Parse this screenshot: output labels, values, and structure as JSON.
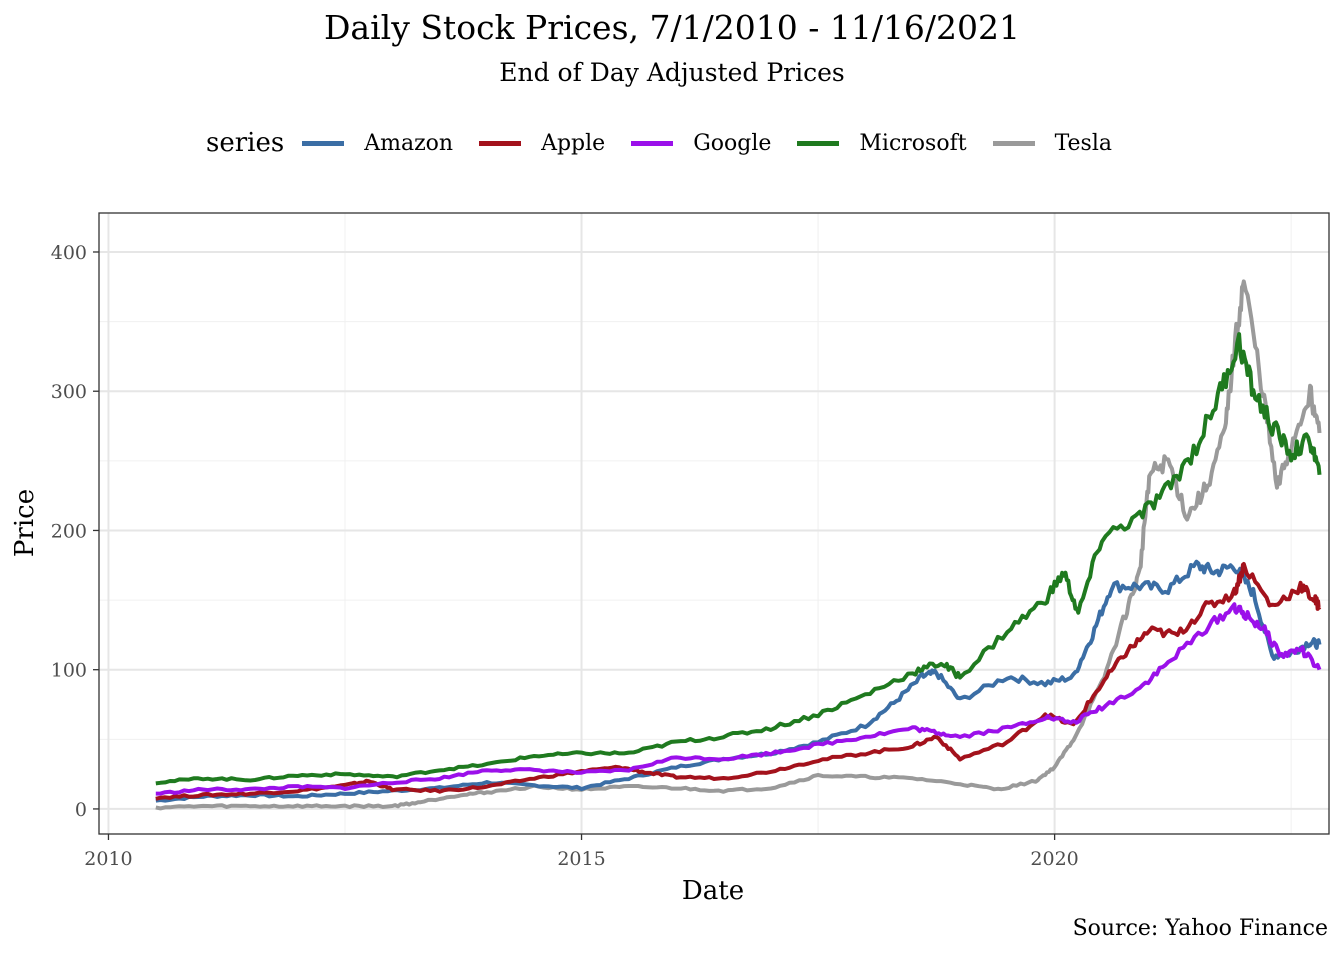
{
  "chart_data": {
    "type": "line",
    "title": "Daily Stock Prices, 7/1/2010 - 11/16/2021",
    "subtitle": "End of Day Adjusted Prices",
    "xlabel": "Date",
    "ylabel": "Price",
    "caption": "Source: Yahoo Finance",
    "legend_title": "series",
    "legend_position": "top",
    "grid": true,
    "xlim": [
      2009.9,
      2022.9
    ],
    "ylim": [
      -18,
      428
    ],
    "x_ticks": [
      2010,
      2015,
      2020
    ],
    "y_ticks": [
      0,
      100,
      200,
      300,
      400
    ],
    "series": [
      {
        "name": "Amazon",
        "color": "#3b6ea5",
        "x": [
          2010.5,
          2011.0,
          2011.5,
          2012.0,
          2012.5,
          2013.0,
          2013.5,
          2014.0,
          2014.5,
          2015.0,
          2015.5,
          2016.0,
          2016.5,
          2017.0,
          2017.5,
          2018.0,
          2018.3,
          2018.6,
          2018.75,
          2019.0,
          2019.5,
          2019.9,
          2020.2,
          2020.4,
          2020.6,
          2020.9,
          2021.2,
          2021.5,
          2021.7,
          2021.9,
          2022.1,
          2022.3,
          2022.5,
          2022.7,
          2022.8
        ],
        "values": [
          6,
          9,
          10,
          9,
          11,
          13,
          15,
          19,
          17,
          15,
          22,
          30,
          36,
          40,
          48,
          60,
          76,
          95,
          98,
          78,
          95,
          90,
          95,
          125,
          160,
          160,
          158,
          175,
          170,
          175,
          155,
          110,
          112,
          120,
          118
        ]
      },
      {
        "name": "Apple",
        "color": "#a3121c",
        "x": [
          2010.5,
          2011.0,
          2011.5,
          2012.0,
          2012.5,
          2012.75,
          2013.0,
          2013.5,
          2014.0,
          2014.5,
          2015.0,
          2015.4,
          2015.7,
          2016.0,
          2016.5,
          2017.0,
          2017.5,
          2018.0,
          2018.5,
          2018.75,
          2019.0,
          2019.5,
          2019.9,
          2020.2,
          2020.5,
          2020.75,
          2021.0,
          2021.3,
          2021.6,
          2021.9,
          2022.0,
          2022.3,
          2022.6,
          2022.75,
          2022.8
        ],
        "values": [
          8,
          10,
          11,
          13,
          17,
          20,
          14,
          13,
          16,
          22,
          27,
          30,
          26,
          23,
          22,
          27,
          35,
          40,
          45,
          52,
          36,
          48,
          68,
          60,
          90,
          112,
          128,
          125,
          145,
          155,
          175,
          145,
          160,
          150,
          145
        ]
      },
      {
        "name": "Google",
        "color": "#9b10ea",
        "x": [
          2010.5,
          2011.0,
          2011.5,
          2012.0,
          2012.5,
          2013.0,
          2013.5,
          2014.0,
          2014.5,
          2015.0,
          2015.5,
          2016.0,
          2016.5,
          2017.0,
          2017.5,
          2018.0,
          2018.5,
          2018.75,
          2019.0,
          2019.5,
          2019.9,
          2020.2,
          2020.5,
          2020.9,
          2021.2,
          2021.6,
          2021.9,
          2022.0,
          2022.2,
          2022.4,
          2022.6,
          2022.8
        ],
        "values": [
          11,
          14,
          14,
          16,
          15,
          19,
          22,
          28,
          28,
          26,
          28,
          37,
          36,
          40,
          46,
          52,
          58,
          55,
          52,
          58,
          66,
          62,
          73,
          87,
          105,
          130,
          145,
          140,
          130,
          110,
          115,
          100
        ]
      },
      {
        "name": "Microsoft",
        "color": "#1f7a1f",
        "x": [
          2010.5,
          2011.0,
          2011.5,
          2012.0,
          2012.5,
          2013.0,
          2013.5,
          2014.0,
          2014.5,
          2015.0,
          2015.5,
          2016.0,
          2016.5,
          2017.0,
          2017.5,
          2018.0,
          2018.5,
          2018.8,
          2019.0,
          2019.5,
          2019.9,
          2020.1,
          2020.25,
          2020.5,
          2020.9,
          2021.2,
          2021.5,
          2021.75,
          2021.95,
          2022.1,
          2022.3,
          2022.5,
          2022.7,
          2022.8
        ],
        "values": [
          19,
          22,
          21,
          24,
          25,
          23,
          28,
          32,
          38,
          40,
          40,
          48,
          52,
          58,
          68,
          82,
          98,
          105,
          95,
          128,
          150,
          170,
          140,
          195,
          210,
          230,
          260,
          300,
          335,
          300,
          275,
          255,
          265,
          240
        ]
      },
      {
        "name": "Tesla",
        "color": "#9a9a9a",
        "x": [
          2010.5,
          2011.0,
          2011.5,
          2012.0,
          2012.5,
          2013.0,
          2013.3,
          2013.7,
          2014.0,
          2014.5,
          2015.0,
          2015.5,
          2016.0,
          2016.5,
          2017.0,
          2017.5,
          2018.0,
          2018.5,
          2019.0,
          2019.4,
          2019.8,
          2020.0,
          2020.2,
          2020.5,
          2020.75,
          2020.9,
          2021.0,
          2021.2,
          2021.4,
          2021.6,
          2021.8,
          2021.9,
          2022.0,
          2022.2,
          2022.35,
          2022.5,
          2022.7,
          2022.8
        ],
        "values": [
          1,
          2,
          2,
          2,
          2,
          2,
          5,
          10,
          12,
          16,
          14,
          16,
          15,
          13,
          15,
          24,
          23,
          22,
          18,
          14,
          20,
          30,
          50,
          90,
          140,
          170,
          240,
          250,
          210,
          230,
          270,
          330,
          380,
          300,
          230,
          260,
          300,
          270
        ]
      }
    ]
  }
}
